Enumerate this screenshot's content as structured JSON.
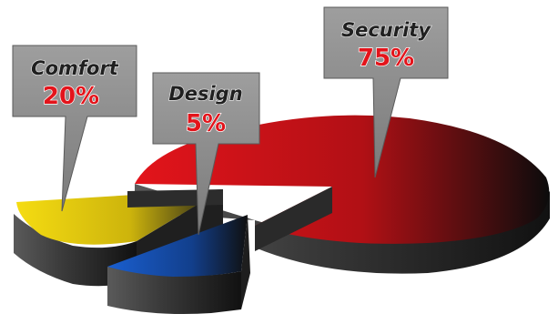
{
  "chart_data": {
    "type": "pie",
    "title": "",
    "slices": [
      {
        "label": "Security",
        "value_text": "75%",
        "value": 75,
        "color": "#e3141b"
      },
      {
        "label": "Comfort",
        "value_text": "20%",
        "value": 20,
        "color": "#f5dc12"
      },
      {
        "label": "Design",
        "value_text": "5%",
        "value": 5,
        "color": "#1a5fd0"
      }
    ],
    "style": "3d-exploded-pie-with-callouts",
    "side_color": "#3a3a3a",
    "callout_color": "#8c8c8c"
  }
}
